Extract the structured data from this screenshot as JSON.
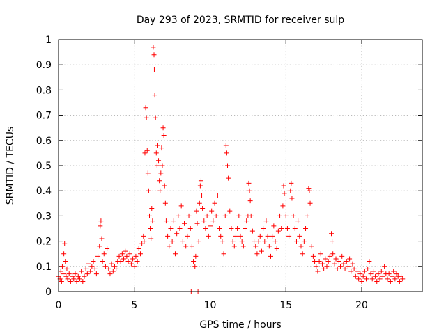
{
  "chart_data": {
    "type": "scatter",
    "title": "Day 293 of 2023, SRMTID for receiver sulp",
    "xlabel": "GPS time / hours",
    "ylabel": "SRMTID / TECUs",
    "xlim": [
      0,
      24
    ],
    "ylim": [
      0,
      1
    ],
    "x_ticks": [
      0,
      5,
      10,
      15,
      20
    ],
    "x_tick_labels": [
      "0",
      "5",
      "10",
      "15",
      "20"
    ],
    "y_ticks": [
      0,
      0.1,
      0.2,
      0.3,
      0.4,
      0.5,
      0.6,
      0.7,
      0.8,
      0.9,
      1
    ],
    "y_tick_labels": [
      "0",
      "0.1",
      "0.2",
      "0.3",
      "0.4",
      "0.5",
      "0.6",
      "0.7",
      "0.8",
      "0.9",
      "1"
    ],
    "grid": true,
    "marker": "+",
    "color": "#ff0000",
    "series": [
      {
        "name": "SRMTID",
        "points": [
          [
            0.0,
            0.06
          ],
          [
            0.1,
            0.05
          ],
          [
            0.15,
            0.08
          ],
          [
            0.2,
            0.04
          ],
          [
            0.25,
            0.1
          ],
          [
            0.3,
            0.07
          ],
          [
            0.35,
            0.15
          ],
          [
            0.4,
            0.19
          ],
          [
            0.45,
            0.12
          ],
          [
            0.5,
            0.06
          ],
          [
            0.55,
            0.09
          ],
          [
            0.6,
            0.05
          ],
          [
            0.7,
            0.07
          ],
          [
            0.8,
            0.04
          ],
          [
            0.9,
            0.06
          ],
          [
            1.0,
            0.05
          ],
          [
            1.1,
            0.07
          ],
          [
            1.2,
            0.04
          ],
          [
            1.3,
            0.06
          ],
          [
            1.4,
            0.05
          ],
          [
            1.5,
            0.08
          ],
          [
            1.6,
            0.04
          ],
          [
            1.7,
            0.06
          ],
          [
            1.8,
            0.09
          ],
          [
            1.9,
            0.07
          ],
          [
            2.0,
            0.11
          ],
          [
            2.1,
            0.08
          ],
          [
            2.2,
            0.1
          ],
          [
            2.3,
            0.12
          ],
          [
            2.4,
            0.09
          ],
          [
            2.5,
            0.07
          ],
          [
            2.6,
            0.14
          ],
          [
            2.7,
            0.18
          ],
          [
            2.75,
            0.26
          ],
          [
            2.8,
            0.28
          ],
          [
            2.85,
            0.21
          ],
          [
            2.9,
            0.12
          ],
          [
            3.0,
            0.15
          ],
          [
            3.1,
            0.1
          ],
          [
            3.2,
            0.17
          ],
          [
            3.3,
            0.09
          ],
          [
            3.4,
            0.07
          ],
          [
            3.5,
            0.11
          ],
          [
            3.6,
            0.08
          ],
          [
            3.7,
            0.1
          ],
          [
            3.8,
            0.09
          ],
          [
            3.9,
            0.12
          ],
          [
            4.0,
            0.14
          ],
          [
            4.1,
            0.12
          ],
          [
            4.2,
            0.15
          ],
          [
            4.3,
            0.13
          ],
          [
            4.4,
            0.16
          ],
          [
            4.5,
            0.14
          ],
          [
            4.6,
            0.12
          ],
          [
            4.7,
            0.15
          ],
          [
            4.8,
            0.11
          ],
          [
            4.9,
            0.13
          ],
          [
            5.0,
            0.1
          ],
          [
            5.1,
            0.14
          ],
          [
            5.2,
            0.12
          ],
          [
            5.3,
            0.17
          ],
          [
            5.4,
            0.15
          ],
          [
            5.5,
            0.19
          ],
          [
            5.6,
            0.22
          ],
          [
            5.65,
            0.2
          ],
          [
            5.7,
            0.55
          ],
          [
            5.75,
            0.73
          ],
          [
            5.8,
            0.69
          ],
          [
            5.85,
            0.56
          ],
          [
            5.9,
            0.47
          ],
          [
            5.95,
            0.4
          ],
          [
            6.0,
            0.3
          ],
          [
            6.05,
            0.25
          ],
          [
            6.1,
            0.21
          ],
          [
            6.15,
            0.33
          ],
          [
            6.2,
            0.28
          ],
          [
            6.25,
            0.97
          ],
          [
            6.3,
            0.94
          ],
          [
            6.32,
            0.88
          ],
          [
            6.35,
            0.78
          ],
          [
            6.4,
            0.69
          ],
          [
            6.45,
            0.55
          ],
          [
            6.5,
            0.5
          ],
          [
            6.55,
            0.58
          ],
          [
            6.6,
            0.52
          ],
          [
            6.65,
            0.44
          ],
          [
            6.7,
            0.4
          ],
          [
            6.75,
            0.47
          ],
          [
            6.8,
            0.57
          ],
          [
            6.85,
            0.5
          ],
          [
            6.9,
            0.65
          ],
          [
            6.95,
            0.62
          ],
          [
            7.0,
            0.42
          ],
          [
            7.05,
            0.35
          ],
          [
            7.1,
            0.28
          ],
          [
            7.2,
            0.22
          ],
          [
            7.3,
            0.18
          ],
          [
            7.4,
            0.25
          ],
          [
            7.5,
            0.2
          ],
          [
            7.6,
            0.28
          ],
          [
            7.7,
            0.15
          ],
          [
            7.8,
            0.23
          ],
          [
            7.9,
            0.3
          ],
          [
            8.0,
            0.25
          ],
          [
            8.1,
            0.34
          ],
          [
            8.2,
            0.2
          ],
          [
            8.3,
            0.27
          ],
          [
            8.4,
            0.18
          ],
          [
            8.5,
            0.22
          ],
          [
            8.6,
            0.3
          ],
          [
            8.7,
            0.25
          ],
          [
            8.75,
            0.0
          ],
          [
            8.8,
            0.18
          ],
          [
            8.9,
            0.12
          ],
          [
            9.0,
            0.1
          ],
          [
            9.05,
            0.14
          ],
          [
            9.1,
            0.32
          ],
          [
            9.15,
            0.27
          ],
          [
            9.2,
            0.0
          ],
          [
            9.25,
            0.2
          ],
          [
            9.3,
            0.35
          ],
          [
            9.35,
            0.42
          ],
          [
            9.4,
            0.44
          ],
          [
            9.45,
            0.38
          ],
          [
            9.5,
            0.33
          ],
          [
            9.6,
            0.28
          ],
          [
            9.7,
            0.25
          ],
          [
            9.8,
            0.3
          ],
          [
            9.9,
            0.22
          ],
          [
            10.0,
            0.26
          ],
          [
            10.1,
            0.32
          ],
          [
            10.2,
            0.28
          ],
          [
            10.3,
            0.35
          ],
          [
            10.4,
            0.3
          ],
          [
            10.5,
            0.38
          ],
          [
            10.6,
            0.25
          ],
          [
            10.7,
            0.22
          ],
          [
            10.8,
            0.2
          ],
          [
            10.9,
            0.15
          ],
          [
            11.0,
            0.3
          ],
          [
            11.05,
            0.58
          ],
          [
            11.1,
            0.55
          ],
          [
            11.15,
            0.5
          ],
          [
            11.2,
            0.45
          ],
          [
            11.3,
            0.32
          ],
          [
            11.4,
            0.25
          ],
          [
            11.5,
            0.2
          ],
          [
            11.6,
            0.18
          ],
          [
            11.7,
            0.22
          ],
          [
            11.8,
            0.25
          ],
          [
            11.9,
            0.3
          ],
          [
            12.0,
            0.22
          ],
          [
            12.1,
            0.2
          ],
          [
            12.2,
            0.18
          ],
          [
            12.3,
            0.25
          ],
          [
            12.4,
            0.28
          ],
          [
            12.5,
            0.3
          ],
          [
            12.55,
            0.43
          ],
          [
            12.6,
            0.4
          ],
          [
            12.65,
            0.36
          ],
          [
            12.7,
            0.3
          ],
          [
            12.8,
            0.24
          ],
          [
            12.9,
            0.2
          ],
          [
            13.0,
            0.18
          ],
          [
            13.1,
            0.15
          ],
          [
            13.2,
            0.2
          ],
          [
            13.3,
            0.22
          ],
          [
            13.4,
            0.16
          ],
          [
            13.5,
            0.25
          ],
          [
            13.6,
            0.2
          ],
          [
            13.7,
            0.28
          ],
          [
            13.8,
            0.22
          ],
          [
            13.9,
            0.18
          ],
          [
            14.0,
            0.14
          ],
          [
            14.1,
            0.22
          ],
          [
            14.2,
            0.26
          ],
          [
            14.3,
            0.2
          ],
          [
            14.4,
            0.17
          ],
          [
            14.5,
            0.24
          ],
          [
            14.6,
            0.3
          ],
          [
            14.7,
            0.25
          ],
          [
            14.8,
            0.34
          ],
          [
            14.85,
            0.42
          ],
          [
            14.9,
            0.39
          ],
          [
            15.0,
            0.3
          ],
          [
            15.1,
            0.25
          ],
          [
            15.2,
            0.22
          ],
          [
            15.3,
            0.4
          ],
          [
            15.35,
            0.43
          ],
          [
            15.4,
            0.37
          ],
          [
            15.5,
            0.3
          ],
          [
            15.6,
            0.25
          ],
          [
            15.7,
            0.2
          ],
          [
            15.8,
            0.28
          ],
          [
            15.9,
            0.22
          ],
          [
            16.0,
            0.18
          ],
          [
            16.1,
            0.15
          ],
          [
            16.2,
            0.2
          ],
          [
            16.3,
            0.25
          ],
          [
            16.4,
            0.3
          ],
          [
            16.5,
            0.41
          ],
          [
            16.55,
            0.4
          ],
          [
            16.6,
            0.35
          ],
          [
            16.7,
            0.18
          ],
          [
            16.8,
            0.14
          ],
          [
            16.9,
            0.12
          ],
          [
            17.0,
            0.1
          ],
          [
            17.1,
            0.08
          ],
          [
            17.2,
            0.12
          ],
          [
            17.3,
            0.15
          ],
          [
            17.4,
            0.11
          ],
          [
            17.5,
            0.09
          ],
          [
            17.6,
            0.13
          ],
          [
            17.7,
            0.1
          ],
          [
            17.8,
            0.12
          ],
          [
            17.9,
            0.14
          ],
          [
            18.0,
            0.23
          ],
          [
            18.05,
            0.2
          ],
          [
            18.1,
            0.15
          ],
          [
            18.2,
            0.11
          ],
          [
            18.3,
            0.13
          ],
          [
            18.4,
            0.09
          ],
          [
            18.5,
            0.12
          ],
          [
            18.6,
            0.1
          ],
          [
            18.7,
            0.14
          ],
          [
            18.8,
            0.11
          ],
          [
            18.9,
            0.09
          ],
          [
            19.0,
            0.12
          ],
          [
            19.1,
            0.1
          ],
          [
            19.2,
            0.13
          ],
          [
            19.3,
            0.08
          ],
          [
            19.4,
            0.11
          ],
          [
            19.5,
            0.09
          ],
          [
            19.6,
            0.06
          ],
          [
            19.7,
            0.08
          ],
          [
            19.8,
            0.05
          ],
          [
            19.9,
            0.07
          ],
          [
            20.0,
            0.04
          ],
          [
            20.1,
            0.06
          ],
          [
            20.2,
            0.08
          ],
          [
            20.3,
            0.05
          ],
          [
            20.4,
            0.09
          ],
          [
            20.5,
            0.12
          ],
          [
            20.6,
            0.07
          ],
          [
            20.7,
            0.05
          ],
          [
            20.8,
            0.08
          ],
          [
            20.9,
            0.06
          ],
          [
            21.0,
            0.04
          ],
          [
            21.1,
            0.07
          ],
          [
            21.2,
            0.05
          ],
          [
            21.3,
            0.08
          ],
          [
            21.4,
            0.06
          ],
          [
            21.5,
            0.1
          ],
          [
            21.6,
            0.07
          ],
          [
            21.7,
            0.05
          ],
          [
            21.8,
            0.07
          ],
          [
            21.9,
            0.04
          ],
          [
            22.0,
            0.06
          ],
          [
            22.1,
            0.08
          ],
          [
            22.2,
            0.05
          ],
          [
            22.3,
            0.07
          ],
          [
            22.4,
            0.06
          ],
          [
            22.5,
            0.04
          ],
          [
            22.6,
            0.06
          ],
          [
            22.7,
            0.05
          ]
        ]
      }
    ]
  }
}
